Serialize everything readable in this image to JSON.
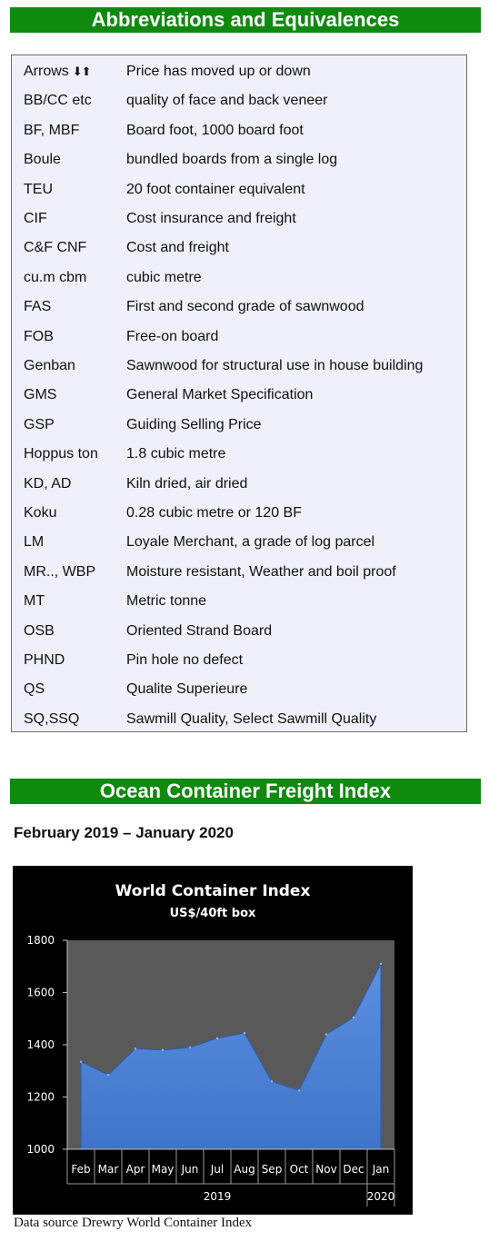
{
  "abbreviations": {
    "title": "Abbreviations and Equivalences",
    "rows": [
      {
        "key": "Arrows",
        "def": "Price has moved up or down"
      },
      {
        "key": "BB/CC etc",
        "def": "quality of face and back veneer"
      },
      {
        "key": "BF, MBF",
        "def": "Board foot, 1000 board foot"
      },
      {
        "key": "Boule",
        "def": "bundled boards from a single log"
      },
      {
        "key": "TEU",
        "def": "20 foot container equivalent"
      },
      {
        "key": "CIF",
        "def": "Cost insurance and freight"
      },
      {
        "key": "C&F CNF",
        "def": "Cost and freight"
      },
      {
        "key": "cu.m cbm",
        "def": "cubic metre"
      },
      {
        "key": "FAS",
        "def": "First and second grade of sawnwood"
      },
      {
        "key": "FOB",
        "def": "Free-on board"
      },
      {
        "key": "Genban",
        "def": "Sawnwood for structural use in house building"
      },
      {
        "key": "GMS",
        "def": "General Market Specification"
      },
      {
        "key": "GSP",
        "def": "Guiding Selling Price"
      },
      {
        "key": "Hoppus ton",
        "def": "1.8 cubic metre"
      },
      {
        "key": "KD, AD",
        "def": "Kiln dried, air dried"
      },
      {
        "key": "Koku",
        "def": "0.28 cubic metre or 120 BF"
      },
      {
        "key": "LM",
        "def": "Loyale Merchant, a grade of log parcel"
      },
      {
        "key": "MR.., WBP",
        "def": "Moisture resistant, Weather and boil proof"
      },
      {
        "key": "MT",
        "def": "Metric tonne"
      },
      {
        "key": "OSB",
        "def": "Oriented Strand Board"
      },
      {
        "key": "PHND",
        "def": "Pin hole no defect"
      },
      {
        "key": "QS",
        "def": "Qualite Superieure"
      },
      {
        "key": "SQ,SSQ",
        "def": "Sawmill Quality, Select Sawmill Quality"
      }
    ]
  },
  "freight": {
    "title": "Ocean Container Freight Index",
    "period": "February 2019 – January 2020",
    "source": "Data source Drewry World Container Index"
  },
  "colors": {
    "banner": "#0f8a0f",
    "table_bg": "#eef1f9",
    "plot_bg": "#595959",
    "area_fill": "#3f74c9"
  },
  "chart_data": {
    "type": "area",
    "title": "World Container Index",
    "subtitle": "US$/40ft box",
    "categories": [
      "Feb",
      "Mar",
      "Apr",
      "May",
      "Jun",
      "Jul",
      "Aug",
      "Sep",
      "Oct",
      "Nov",
      "Dec",
      "Jan"
    ],
    "year_labels": [
      "2019",
      "2020"
    ],
    "values": [
      1335,
      1285,
      1385,
      1380,
      1390,
      1425,
      1445,
      1260,
      1225,
      1440,
      1505,
      1710
    ],
    "ylim": [
      1000,
      1800
    ],
    "yticks": [
      1000,
      1200,
      1400,
      1600,
      1800
    ],
    "grid": false,
    "legend": "none"
  }
}
